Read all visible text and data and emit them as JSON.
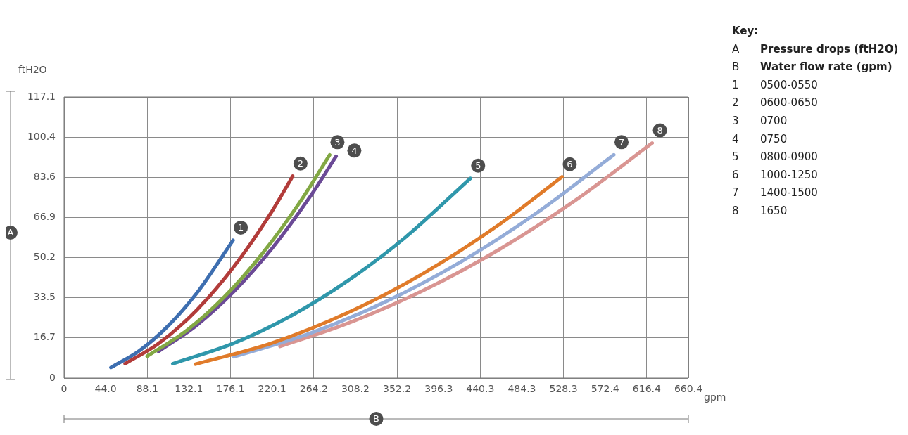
{
  "chart_data": {
    "type": "line",
    "xlabel": "B",
    "ylabel": "A",
    "xlim": [
      0,
      660.4
    ],
    "xticks": [
      {
        "value": 0,
        "label": "0"
      },
      {
        "value": 44.03,
        "label": "44.0"
      },
      {
        "value": 88.05,
        "label": "88.1"
      },
      {
        "value": 132.08,
        "label": "132.1"
      },
      {
        "value": 176.11,
        "label": "176.1"
      },
      {
        "value": 220.13,
        "label": "220.1"
      },
      {
        "value": 264.16,
        "label": "264.2"
      },
      {
        "value": 308.19,
        "label": "308.2"
      },
      {
        "value": 352.21,
        "label": "352.2"
      },
      {
        "value": 396.3,
        "label": "396.3"
      },
      {
        "value": 440.27,
        "label": "440.3"
      },
      {
        "value": 484.29,
        "label": "484.3"
      },
      {
        "value": 528.32,
        "label": "528.3"
      },
      {
        "value": 572.35,
        "label": "572.4"
      },
      {
        "value": 616.37,
        "label": "616.4"
      },
      {
        "value": 660.4,
        "label": "660.4"
      }
    ],
    "ylim": [
      0,
      117.1
    ],
    "yticks": [
      {
        "value": 0,
        "label": "0"
      },
      {
        "value": 16.73,
        "label": "16.7"
      },
      {
        "value": 33.46,
        "label": "33.5"
      },
      {
        "value": 50.19,
        "label": "50.2"
      },
      {
        "value": 66.91,
        "label": "66.9"
      },
      {
        "value": 83.64,
        "label": "83.6"
      },
      {
        "value": 100.37,
        "label": "100.4"
      },
      {
        "value": 117.1,
        "label": "117.1"
      }
    ],
    "grid": true,
    "marker": "none",
    "line_style": "solid",
    "legend": false,
    "series": [
      {
        "name": "1",
        "color": "#3d6eb0",
        "x": [
          49.6,
          80,
          110,
          140,
          178.8
        ],
        "values": [
          4.4,
          11.5,
          21.7,
          35.2,
          57.4
        ]
      },
      {
        "name": "2",
        "color": "#b23c3a",
        "x": [
          64.6,
          100,
          140,
          180,
          220,
          241.9
        ],
        "values": [
          6.0,
          14.4,
          28.2,
          46.6,
          69.5,
          84.1
        ]
      },
      {
        "name": "3",
        "color": "#82a844",
        "x": [
          87.9,
          130,
          170,
          210,
          250,
          281
        ],
        "values": [
          9.1,
          19.9,
          34.0,
          52.0,
          73.6,
          93.0
        ]
      },
      {
        "name": "4",
        "color": "#6b4a96",
        "x": [
          99.9,
          140,
          180,
          220,
          260,
          287.8
        ],
        "values": [
          11.1,
          21.9,
          36.2,
          54.0,
          75.4,
          92.4
        ]
      },
      {
        "name": "5",
        "color": "#2f97ab",
        "x": [
          115,
          180,
          240,
          300,
          360,
          429.8
        ],
        "values": [
          6.0,
          14.6,
          25.9,
          40.5,
          58.3,
          83.2
        ]
      },
      {
        "name": "6",
        "color": "#e07b2a",
        "x": [
          139,
          220,
          300,
          380,
          460,
          526.7
        ],
        "values": [
          5.8,
          14.6,
          27.2,
          43.6,
          63.9,
          83.8
        ]
      },
      {
        "name": "7",
        "color": "#94acd8",
        "x": [
          179.6,
          260,
          340,
          420,
          500,
          581.5
        ],
        "values": [
          8.9,
          18.6,
          31.8,
          48.5,
          68.8,
          93.0
        ]
      },
      {
        "name": "8",
        "color": "#d99592",
        "x": [
          228.4,
          300,
          380,
          460,
          540,
          622.1
        ],
        "values": [
          13.2,
          22.8,
          36.5,
          53.5,
          73.8,
          97.9
        ]
      }
    ],
    "annotations": [
      "ftH2O",
      "gpm",
      "Key:",
      "A",
      "Pressure drops (ftH2O)",
      "B",
      "Water flow rate (gpm)",
      "1",
      "0500-0550",
      "2",
      "0600-0650",
      "3",
      "0700",
      "4",
      "0750",
      "5",
      "0800-0900",
      "6",
      "1000-1250",
      "7",
      "1400-1500",
      "8",
      "1650"
    ]
  }
}
